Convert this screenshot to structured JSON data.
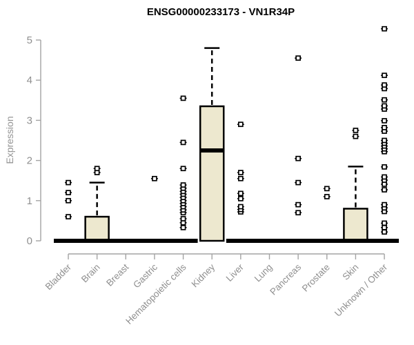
{
  "chart_data": {
    "type": "boxplot",
    "title": "ENSG00000233173 - VN1R34P",
    "ylabel": "Expression",
    "xlabel": "",
    "ylim": [
      0,
      5
    ],
    "yticks": [
      0,
      1,
      2,
      3,
      4,
      5
    ],
    "grid": false,
    "legend": "none",
    "colors": {
      "box_fill": "#ede8cf",
      "box_border": "#000000",
      "median": "#000000",
      "whisker": "#000000",
      "outlier_stroke": "#000000",
      "outlier_fill": "#ffffff",
      "axis": "#a3a3a3",
      "tick_text": "#8f8f8f",
      "title_text": "#000000"
    },
    "categories": [
      "Bladder",
      "Brain",
      "Breast",
      "Gastric",
      "Hematopoietic cells",
      "Kidney",
      "Liver",
      "Lung",
      "Pancreas",
      "Prostate",
      "Skin",
      "Unknown / Other"
    ],
    "boxes": [
      {
        "category": "Bladder",
        "min": 0,
        "q1": 0,
        "median": 0,
        "q3": 0,
        "max": 0,
        "outliers": [
          0.6,
          1.0,
          1.2,
          1.45
        ]
      },
      {
        "category": "Brain",
        "min": 0,
        "q1": 0,
        "median": 0,
        "q3": 0.6,
        "max": 1.45,
        "outliers": [
          1.7,
          1.8
        ]
      },
      {
        "category": "Breast",
        "min": 0,
        "q1": 0,
        "median": 0,
        "q3": 0,
        "max": 0,
        "outliers": []
      },
      {
        "category": "Gastric",
        "min": 0,
        "q1": 0,
        "median": 0,
        "q3": 0,
        "max": 0,
        "outliers": [
          1.55
        ]
      },
      {
        "category": "Hematopoietic cells",
        "min": 0,
        "q1": 0,
        "median": 0,
        "q3": 0,
        "max": 0,
        "outliers": [
          0.33,
          0.45,
          0.55,
          0.7,
          0.77,
          0.85,
          0.93,
          1.0,
          1.08,
          1.16,
          1.23,
          1.31,
          1.39,
          1.8,
          2.45,
          3.55
        ]
      },
      {
        "category": "Kidney",
        "min": 0,
        "q1": 0,
        "median": 2.25,
        "q3": 3.35,
        "max": 4.8,
        "outliers": []
      },
      {
        "category": "Liver",
        "min": 0,
        "q1": 0,
        "median": 0,
        "q3": 0,
        "max": 0,
        "outliers": [
          0.72,
          0.78,
          0.85,
          1.05,
          1.18,
          1.55,
          1.7,
          2.9
        ]
      },
      {
        "category": "Lung",
        "min": 0,
        "q1": 0,
        "median": 0,
        "q3": 0,
        "max": 0,
        "outliers": []
      },
      {
        "category": "Pancreas",
        "min": 0,
        "q1": 0,
        "median": 0,
        "q3": 0,
        "max": 0,
        "outliers": [
          0.7,
          0.9,
          1.45,
          2.05,
          4.55
        ]
      },
      {
        "category": "Prostate",
        "min": 0,
        "q1": 0,
        "median": 0,
        "q3": 0,
        "max": 0,
        "outliers": [
          1.1,
          1.3
        ]
      },
      {
        "category": "Skin",
        "min": 0,
        "q1": 0,
        "median": 0,
        "q3": 0.8,
        "max": 1.85,
        "outliers": [
          2.6,
          2.75
        ]
      },
      {
        "category": "Unknown / Other",
        "min": 0,
        "q1": 0,
        "median": 0,
        "q3": 0,
        "max": 0,
        "outliers": [
          0.22,
          0.33,
          0.44,
          0.73,
          0.82,
          0.9,
          1.27,
          1.41,
          1.51,
          1.59,
          1.84,
          2.22,
          2.29,
          2.36,
          2.43,
          2.5,
          2.73,
          2.82,
          2.99,
          3.28,
          3.36,
          3.51,
          3.79,
          3.88,
          4.12,
          5.28
        ]
      }
    ]
  }
}
